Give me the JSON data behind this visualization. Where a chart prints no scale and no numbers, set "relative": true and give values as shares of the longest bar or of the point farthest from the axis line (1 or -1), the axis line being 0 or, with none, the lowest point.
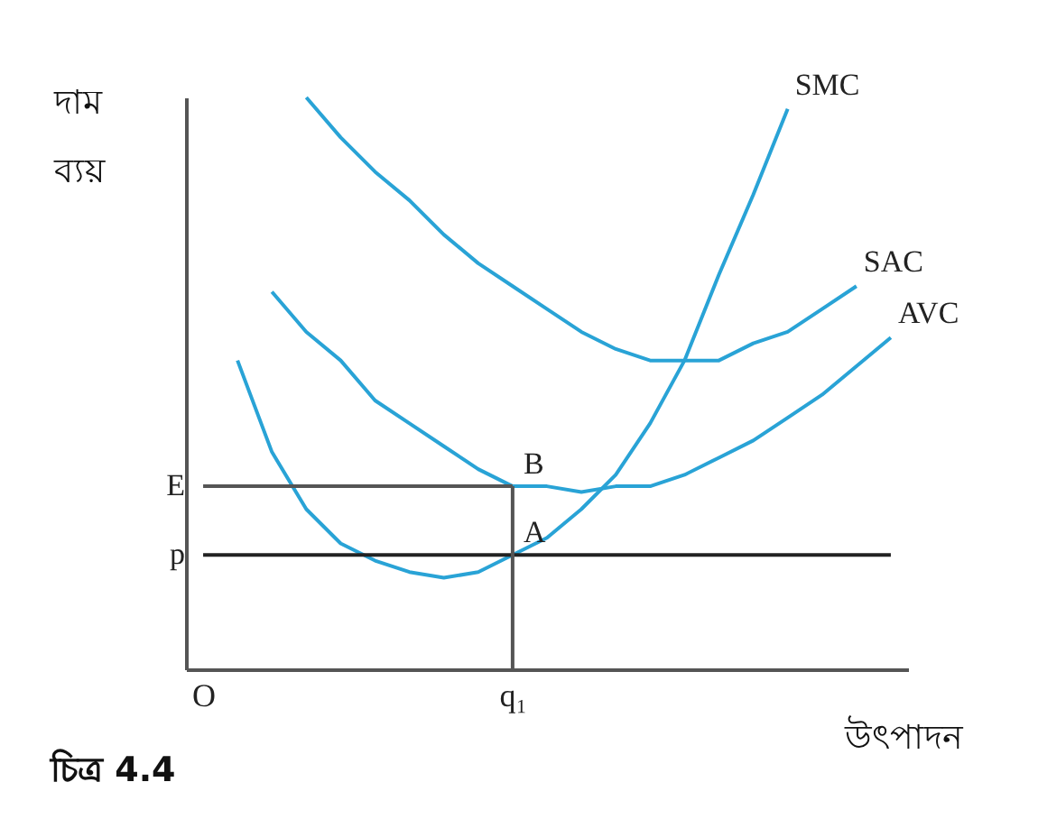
{
  "chart_data": {
    "type": "line",
    "relative": true,
    "ylabel": "দাম ব্যয়",
    "xlabel": "উৎপাদন",
    "grid": false,
    "marker": "none",
    "categories": [
      "O",
      null,
      null,
      null,
      null,
      null,
      null,
      null,
      null,
      "q₁",
      null,
      null,
      null,
      null,
      null,
      null,
      null,
      null,
      null,
      null,
      null
    ],
    "series": [
      {
        "name": "SMC",
        "color": "#29a3d6",
        "values": [
          null,
          0.54,
          0.38,
          0.28,
          0.22,
          0.19,
          0.17,
          0.16,
          0.17,
          0.2,
          0.23,
          0.28,
          0.34,
          0.43,
          0.54,
          0.69,
          0.83,
          0.98,
          null,
          null,
          null
        ]
      },
      {
        "name": "SAC",
        "color": "#29a3d6",
        "values": [
          null,
          null,
          null,
          1,
          0.93,
          0.87,
          0.82,
          0.76,
          0.71,
          0.67,
          0.63,
          0.59,
          0.56,
          0.54,
          0.54,
          0.54,
          0.57,
          0.59,
          0.63,
          0.67,
          null
        ]
      },
      {
        "name": "AVC",
        "color": "#29a3d6",
        "values": [
          null,
          null,
          0.66,
          0.59,
          0.54,
          0.47,
          0.43,
          0.39,
          0.35,
          0.32,
          0.32,
          0.31,
          0.32,
          0.32,
          0.34,
          0.37,
          0.4,
          0.44,
          0.48,
          0.53,
          0.58
        ]
      },
      {
        "name": "E",
        "color": "#555555",
        "values": [
          0.32,
          0.32,
          0.32,
          0.32,
          0.32,
          0.32,
          0.32,
          0.32,
          0.32,
          0.32,
          null,
          null,
          null,
          null,
          null,
          null,
          null,
          null,
          null,
          null,
          null
        ]
      },
      {
        "name": "p",
        "color": "#222222",
        "values": [
          0.2,
          0.2,
          0.2,
          0.2,
          0.2,
          0.2,
          0.2,
          0.2,
          0.2,
          0.2,
          0.2,
          0.2,
          0.2,
          0.2,
          0.2,
          0.2,
          0.2,
          0.2,
          0.2,
          0.2,
          0.2
        ]
      },
      {
        "color": "#555555",
        "x": [
          "q₁",
          "q₁"
        ],
        "values": [
          0,
          0.32
        ]
      }
    ],
    "annotations": [
      {
        "text": "B",
        "x": "q₁",
        "y": 0.32
      },
      {
        "text": "A",
        "x": "q₁",
        "y": 0.2
      },
      "চিত্র 4.4"
    ]
  }
}
